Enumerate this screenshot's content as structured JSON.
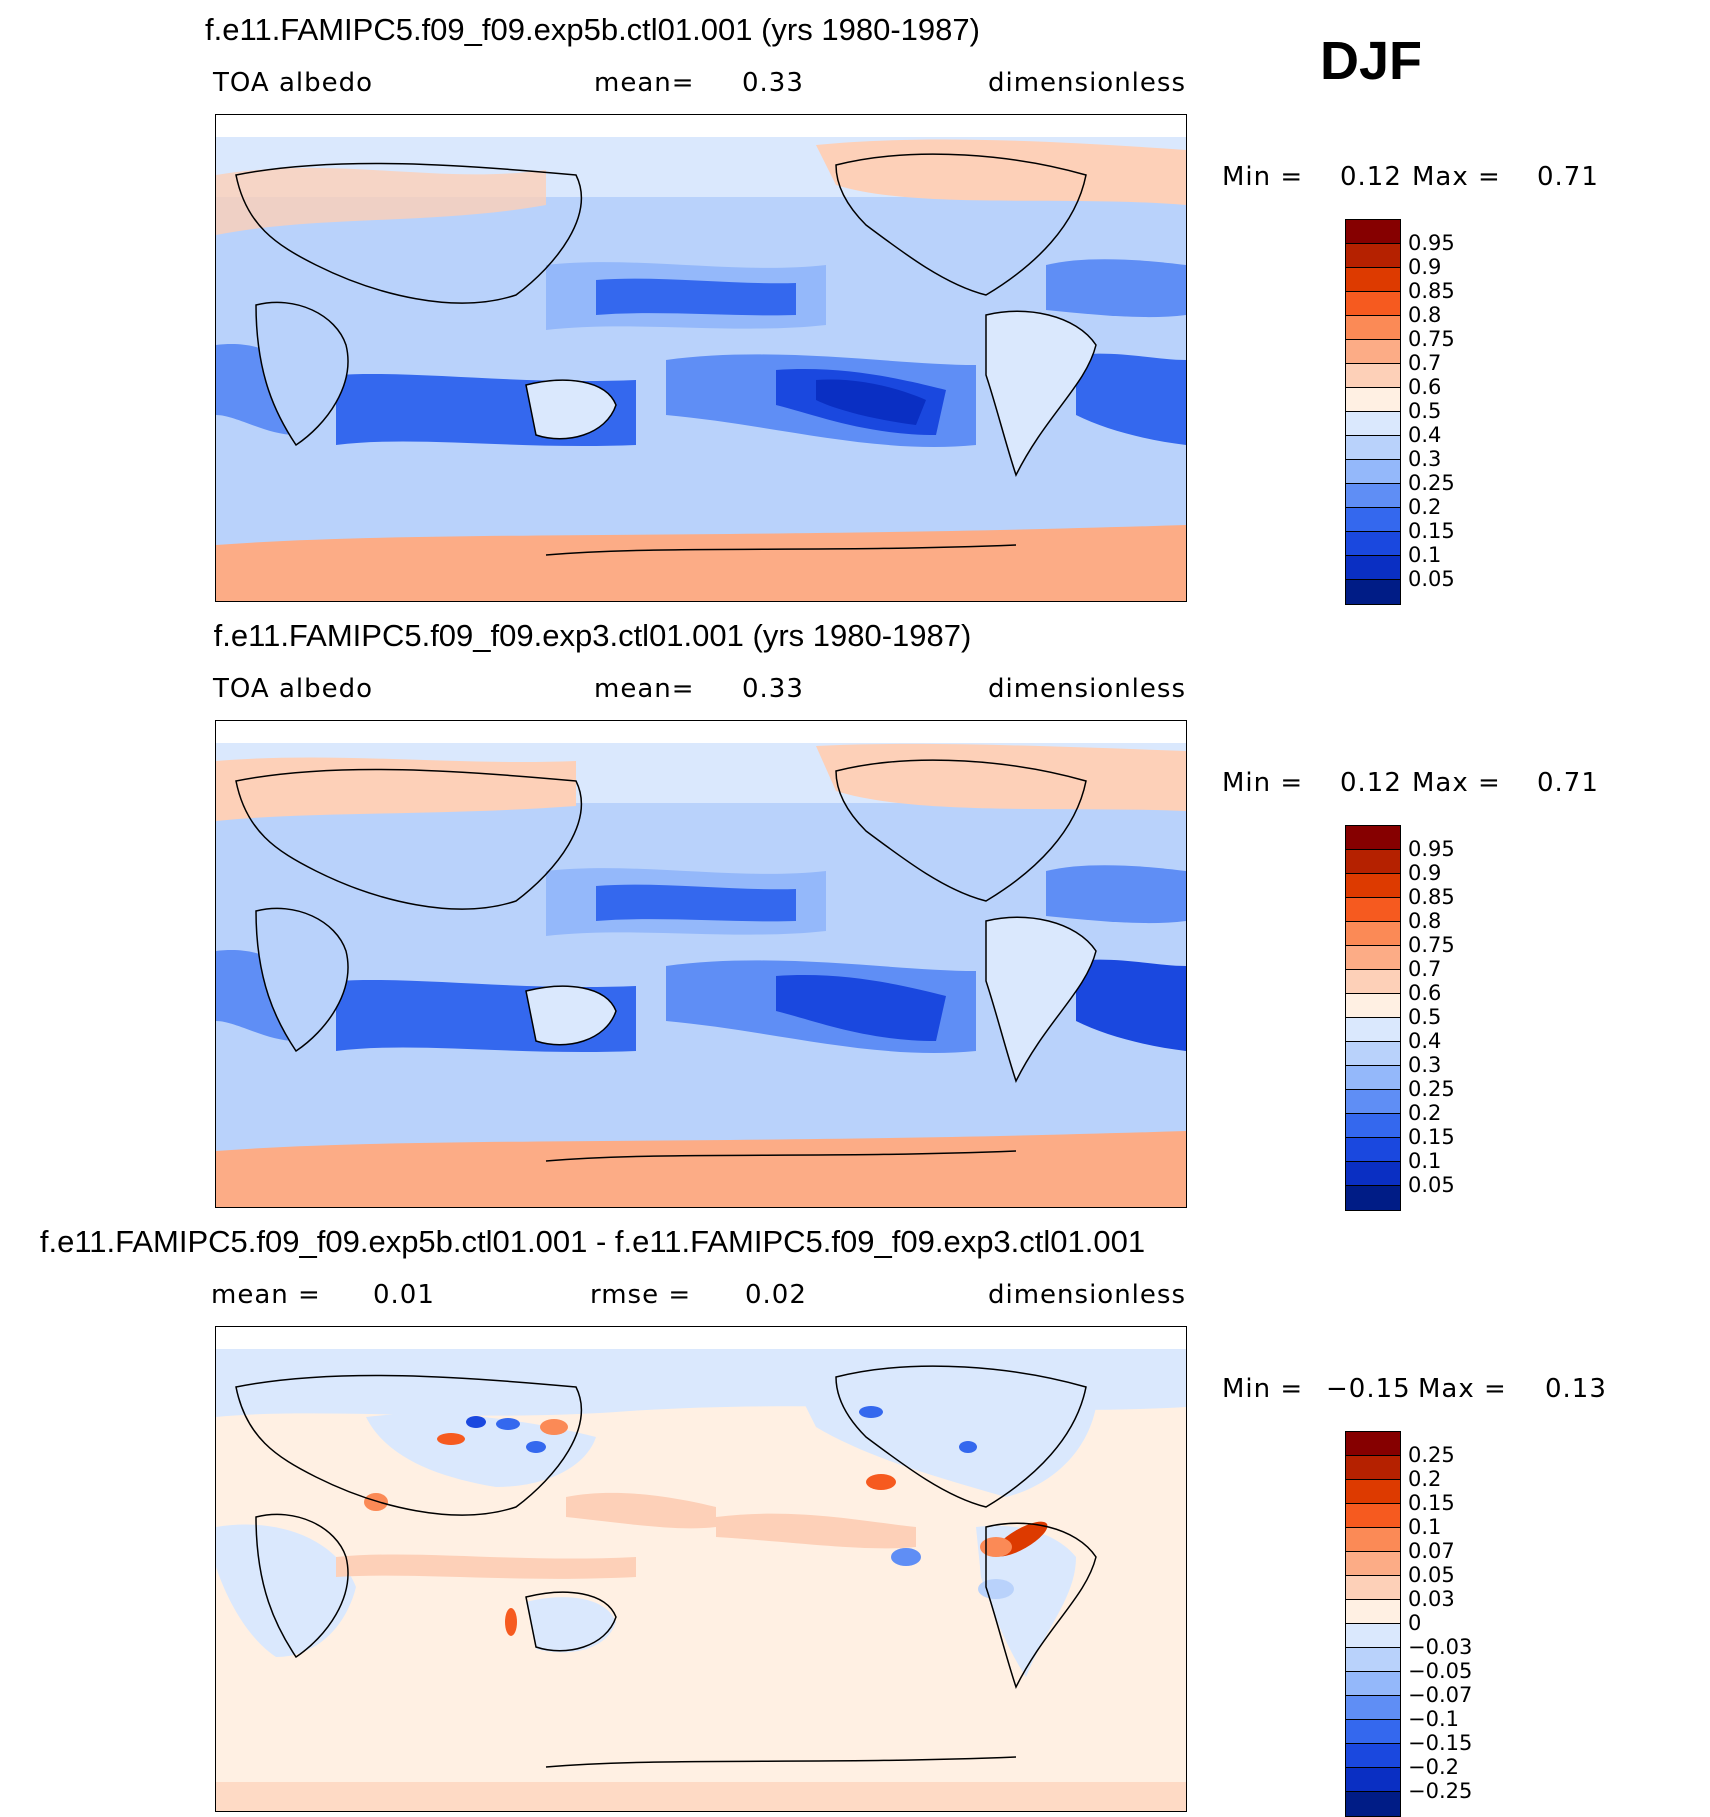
{
  "season": "DJF",
  "panels": [
    {
      "title": "f.e11.FAMIPC5.f09_f09.exp5b.ctl01.001 (yrs 1980-1987)",
      "sub_left": "TOA  albedo",
      "sub_mid_label": "mean=",
      "sub_mid_value": "0.33",
      "units": "dimensionless",
      "min_label": "Min  =",
      "min_value": "0.12",
      "max_label": "Max  =",
      "max_value": "0.71",
      "colorbar": {
        "labels": [
          "0.95",
          "0.9",
          "0.85",
          "0.8",
          "0.75",
          "0.7",
          "0.6",
          "0.5",
          "0.4",
          "0.3",
          "0.25",
          "0.2",
          "0.15",
          "0.1",
          "0.05"
        ],
        "colors": [
          "#860000",
          "#b52100",
          "#dd3a00",
          "#f65a1f",
          "#fb8a56",
          "#fcac86",
          "#fdd0b8",
          "#fff0e3",
          "#dae8fd",
          "#b9d2fb",
          "#94b8fa",
          "#5f8ef5",
          "#3468ee",
          "#1a48df",
          "#0a2fc3",
          "#001c86"
        ]
      }
    },
    {
      "title": "f.e11.FAMIPC5.f09_f09.exp3.ctl01.001 (yrs 1980-1987)",
      "sub_left": "TOA  albedo",
      "sub_mid_label": "mean=",
      "sub_mid_value": "0.33",
      "units": "dimensionless",
      "min_label": "Min  =",
      "min_value": "0.12",
      "max_label": "Max  =",
      "max_value": "0.71",
      "colorbar": {
        "labels": [
          "0.95",
          "0.9",
          "0.85",
          "0.8",
          "0.75",
          "0.7",
          "0.6",
          "0.5",
          "0.4",
          "0.3",
          "0.25",
          "0.2",
          "0.15",
          "0.1",
          "0.05"
        ],
        "colors": [
          "#860000",
          "#b52100",
          "#dd3a00",
          "#f65a1f",
          "#fb8a56",
          "#fcac86",
          "#fdd0b8",
          "#fff0e3",
          "#dae8fd",
          "#b9d2fb",
          "#94b8fa",
          "#5f8ef5",
          "#3468ee",
          "#1a48df",
          "#0a2fc3",
          "#001c86"
        ]
      }
    },
    {
      "title": "f.e11.FAMIPC5.f09_f09.exp5b.ctl01.001 - f.e11.FAMIPC5.f09_f09.exp3.ctl01.001",
      "sub_left_label": "mean  =",
      "sub_left_value": "0.01",
      "sub_mid_label": "rmse  =",
      "sub_mid_value": "0.02",
      "units": "dimensionless",
      "min_label": "Min  =",
      "min_value": "−0.15",
      "max_label": "Max  =",
      "max_value": "0.13",
      "colorbar": {
        "labels": [
          "0.25",
          "0.2",
          "0.15",
          "0.1",
          "0.07",
          "0.05",
          "0.03",
          "0",
          "−0.03",
          "−0.05",
          "−0.07",
          "−0.1",
          "−0.15",
          "−0.2",
          "−0.25"
        ],
        "colors": [
          "#860000",
          "#b52100",
          "#dd3a00",
          "#f65a1f",
          "#fb8a56",
          "#fcac86",
          "#fdd0b8",
          "#fff0e3",
          "#dae8fd",
          "#b9d2fb",
          "#94b8fa",
          "#5f8ef5",
          "#3468ee",
          "#1a48df",
          "#0a2fc3",
          "#001c86"
        ]
      }
    }
  ]
}
